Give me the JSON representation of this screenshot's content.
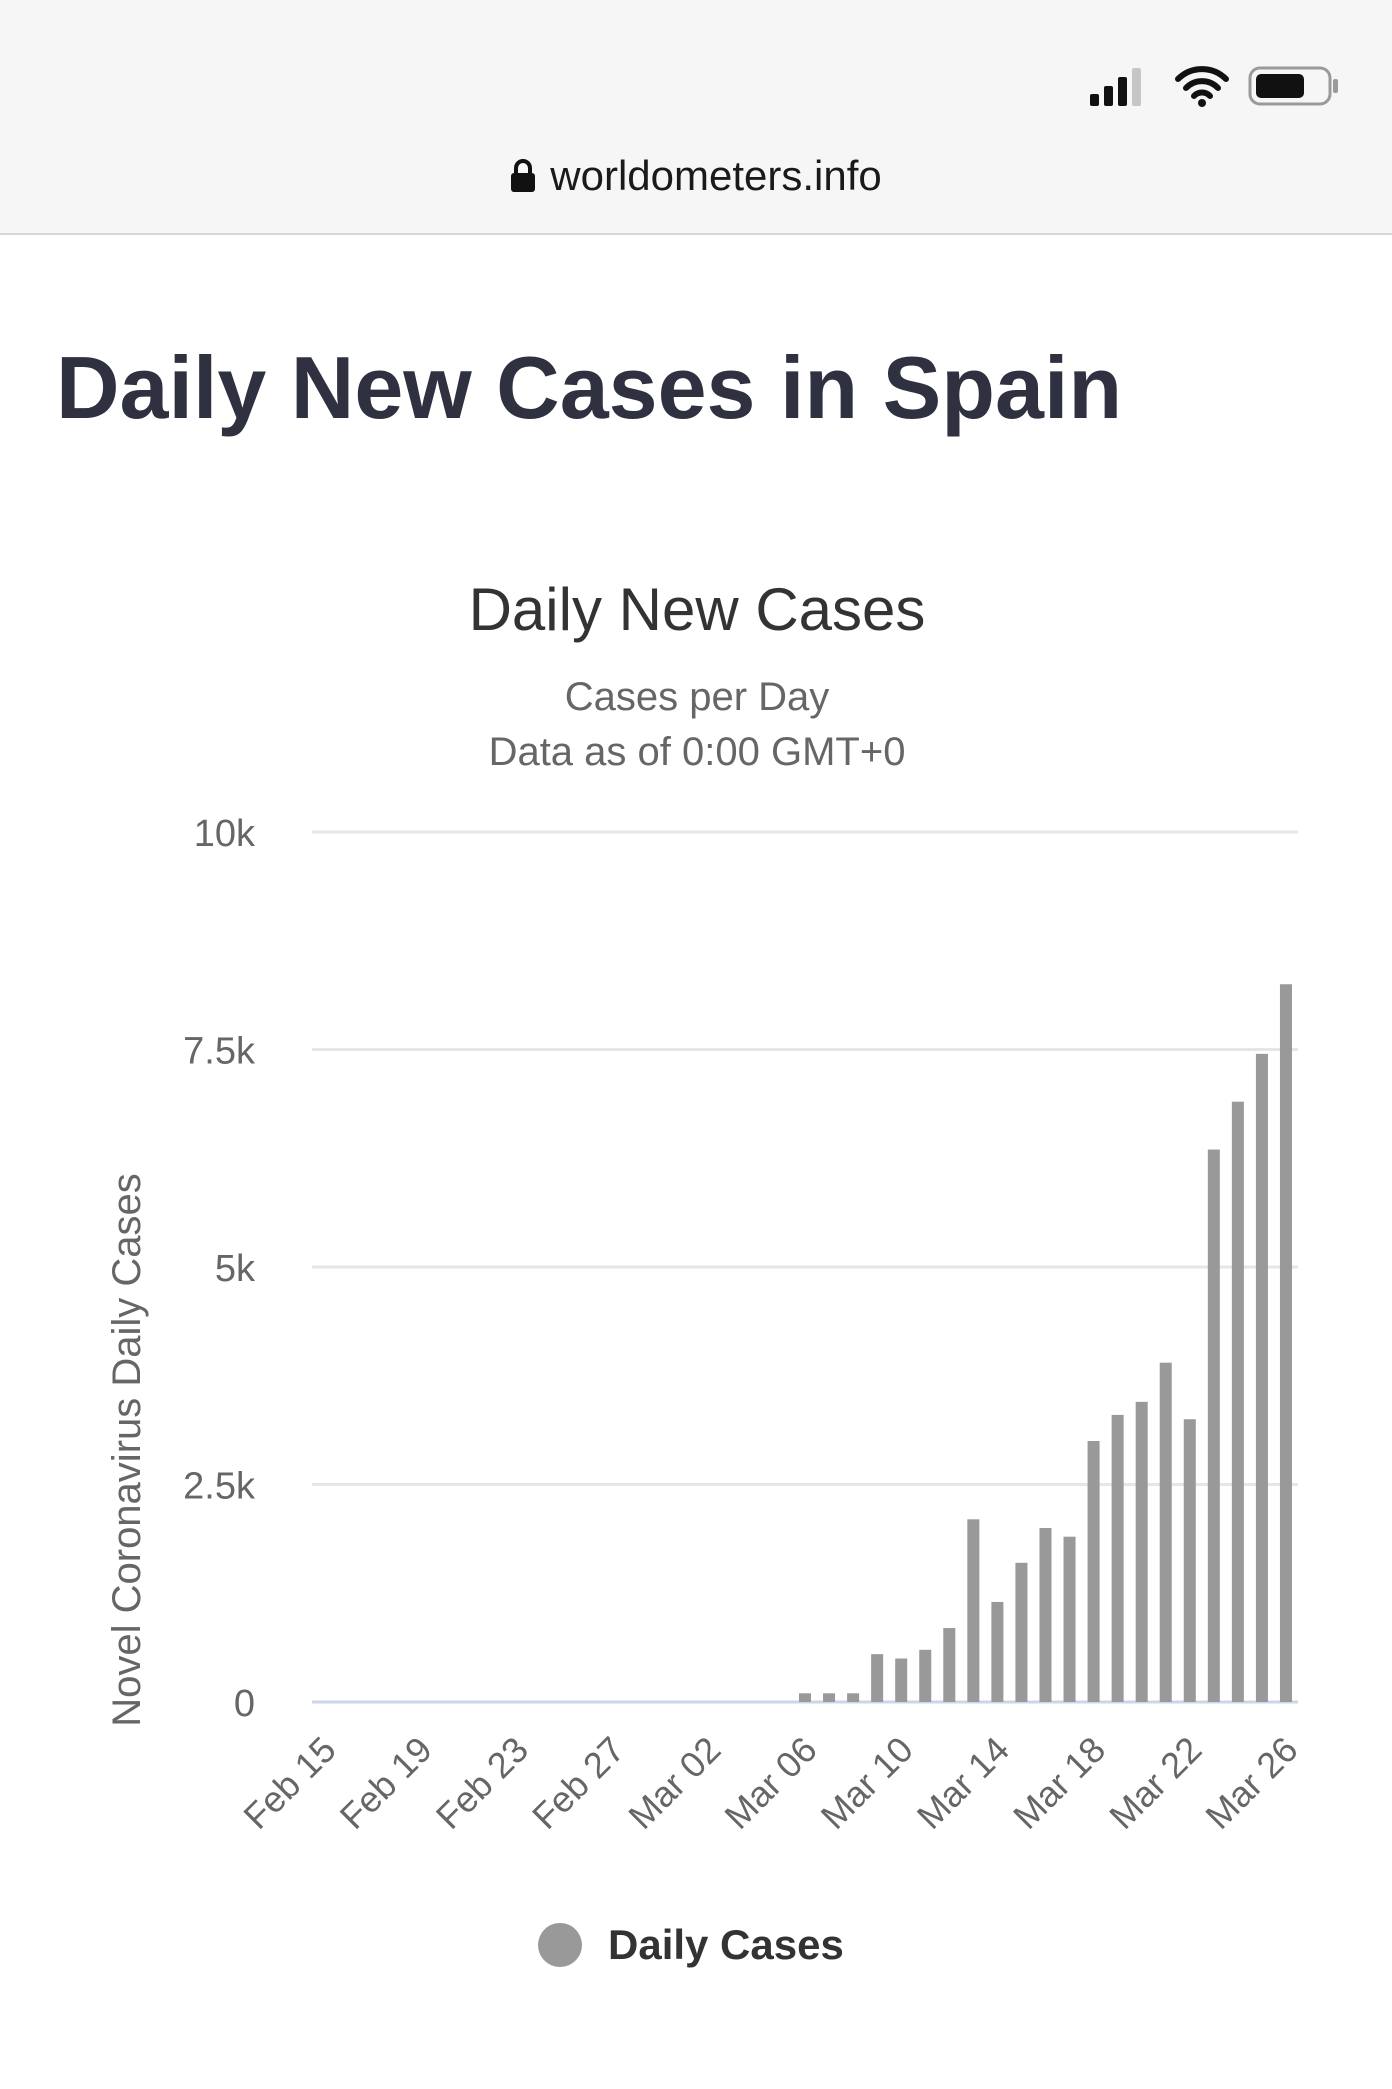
{
  "browser": {
    "url": "worldometers.info",
    "icons": [
      "signal-icon",
      "wifi-icon",
      "battery-icon",
      "lock-icon"
    ]
  },
  "page": {
    "title": "Daily New Cases in Spain"
  },
  "chart_data": {
    "type": "bar",
    "title": "Daily New Cases",
    "subtitle_lines": [
      "Cases per Day",
      "Data as of 0:00 GMT+0"
    ],
    "xlabel": "",
    "ylabel": "Novel Coronavirus Daily Cases",
    "ylim": [
      0,
      10000
    ],
    "yticks": [
      0,
      2500,
      5000,
      7500,
      10000
    ],
    "ytick_labels": [
      "0",
      "2.5k",
      "5k",
      "7.5k",
      "10k"
    ],
    "xtick_labels": [
      "Feb 15",
      "Feb 19",
      "Feb 23",
      "Feb 27",
      "Mar 02",
      "Mar 06",
      "Mar 10",
      "Mar 14",
      "Mar 18",
      "Mar 22",
      "Mar 26"
    ],
    "grid": true,
    "legend_position": "bottom-center",
    "bar_color": "#999999",
    "categories": [
      "Feb 15",
      "Feb 16",
      "Feb 17",
      "Feb 18",
      "Feb 19",
      "Feb 20",
      "Feb 21",
      "Feb 22",
      "Feb 23",
      "Feb 24",
      "Feb 25",
      "Feb 26",
      "Feb 27",
      "Feb 28",
      "Feb 29",
      "Mar 01",
      "Mar 02",
      "Mar 03",
      "Mar 04",
      "Mar 05",
      "Mar 06",
      "Mar 07",
      "Mar 08",
      "Mar 09",
      "Mar 10",
      "Mar 11",
      "Mar 12",
      "Mar 13",
      "Mar 14",
      "Mar 15",
      "Mar 16",
      "Mar 17",
      "Mar 18",
      "Mar 19",
      "Mar 20",
      "Mar 21",
      "Mar 22",
      "Mar 23",
      "Mar 24",
      "Mar 25",
      "Mar 26"
    ],
    "series": [
      {
        "name": "Daily Cases",
        "values": [
          0,
          0,
          0,
          0,
          0,
          0,
          0,
          0,
          0,
          0,
          0,
          0,
          0,
          0,
          0,
          0,
          0,
          0,
          0,
          0,
          100,
          100,
          100,
          550,
          500,
          600,
          850,
          2100,
          1150,
          1600,
          2000,
          1900,
          3000,
          3300,
          3450,
          3900,
          3250,
          6350,
          6900,
          7450,
          8250
        ]
      }
    ]
  }
}
